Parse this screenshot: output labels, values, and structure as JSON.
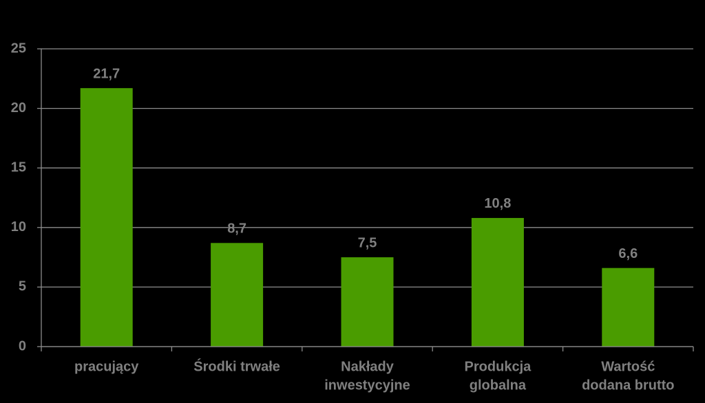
{
  "chart_data": {
    "type": "bar",
    "categories": [
      [
        "pracujący"
      ],
      [
        "Środki trwałe"
      ],
      [
        "Nakłady",
        "inwestycyjne"
      ],
      [
        "Produkcja",
        "globalna"
      ],
      [
        "Wartość",
        "dodana brutto"
      ]
    ],
    "values": [
      21.7,
      8.7,
      7.5,
      10.8,
      6.6
    ],
    "value_labels": [
      "21,7",
      "8,7",
      "7,5",
      "10,8",
      "6,6"
    ],
    "color": "#4a9c00",
    "ylim": [
      0,
      25
    ],
    "yticks": [
      0,
      5,
      10,
      15,
      20,
      25
    ],
    "grid": true
  }
}
